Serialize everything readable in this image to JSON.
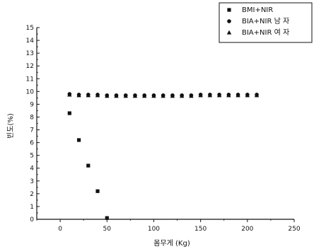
{
  "chart_data": {
    "type": "scatter",
    "title": "",
    "xlabel": "몸무게 (Kg)",
    "ylabel": "빈도(%)",
    "xlim": [
      -25,
      250
    ],
    "ylim": [
      0,
      15
    ],
    "xticks": [
      0,
      50,
      100,
      150,
      200,
      250
    ],
    "yticks": [
      0,
      1,
      2,
      3,
      4,
      5,
      6,
      7,
      8,
      9,
      10,
      11,
      12,
      13,
      14,
      15
    ],
    "grid": false,
    "legend_position": "top-right",
    "series": [
      {
        "name": "BMI+NIR",
        "marker": "square",
        "color": "#111111",
        "points": [
          {
            "x": 10,
            "y": 8.3
          },
          {
            "x": 20,
            "y": 6.2
          },
          {
            "x": 30,
            "y": 4.2
          },
          {
            "x": 40,
            "y": 2.2
          },
          {
            "x": 50,
            "y": 0.1
          }
        ]
      },
      {
        "name": "BIA+NIR 남 자",
        "marker": "circle",
        "color": "#111111",
        "points": [
          {
            "x": 10,
            "y": 9.8
          },
          {
            "x": 20,
            "y": 9.75
          },
          {
            "x": 30,
            "y": 9.75
          },
          {
            "x": 40,
            "y": 9.75
          },
          {
            "x": 50,
            "y": 9.7
          },
          {
            "x": 60,
            "y": 9.7
          },
          {
            "x": 70,
            "y": 9.7
          },
          {
            "x": 80,
            "y": 9.7
          },
          {
            "x": 90,
            "y": 9.7
          },
          {
            "x": 100,
            "y": 9.7
          },
          {
            "x": 110,
            "y": 9.7
          },
          {
            "x": 120,
            "y": 9.7
          },
          {
            "x": 130,
            "y": 9.7
          },
          {
            "x": 140,
            "y": 9.7
          },
          {
            "x": 150,
            "y": 9.75
          },
          {
            "x": 160,
            "y": 9.75
          },
          {
            "x": 170,
            "y": 9.75
          },
          {
            "x": 180,
            "y": 9.75
          },
          {
            "x": 190,
            "y": 9.75
          },
          {
            "x": 200,
            "y": 9.75
          },
          {
            "x": 210,
            "y": 9.75
          }
        ]
      },
      {
        "name": "BIA+NIR 여 자",
        "marker": "triangle",
        "color": "#111111",
        "points": [
          {
            "x": 10,
            "y": 9.75
          },
          {
            "x": 20,
            "y": 9.7
          },
          {
            "x": 30,
            "y": 9.7
          },
          {
            "x": 40,
            "y": 9.7
          },
          {
            "x": 50,
            "y": 9.65
          },
          {
            "x": 60,
            "y": 9.65
          },
          {
            "x": 70,
            "y": 9.65
          },
          {
            "x": 80,
            "y": 9.65
          },
          {
            "x": 90,
            "y": 9.65
          },
          {
            "x": 100,
            "y": 9.65
          },
          {
            "x": 110,
            "y": 9.65
          },
          {
            "x": 120,
            "y": 9.65
          },
          {
            "x": 130,
            "y": 9.65
          },
          {
            "x": 140,
            "y": 9.65
          },
          {
            "x": 150,
            "y": 9.7
          },
          {
            "x": 160,
            "y": 9.7
          },
          {
            "x": 170,
            "y": 9.7
          },
          {
            "x": 180,
            "y": 9.7
          },
          {
            "x": 190,
            "y": 9.7
          },
          {
            "x": 200,
            "y": 9.7
          },
          {
            "x": 210,
            "y": 9.7
          }
        ]
      }
    ]
  }
}
